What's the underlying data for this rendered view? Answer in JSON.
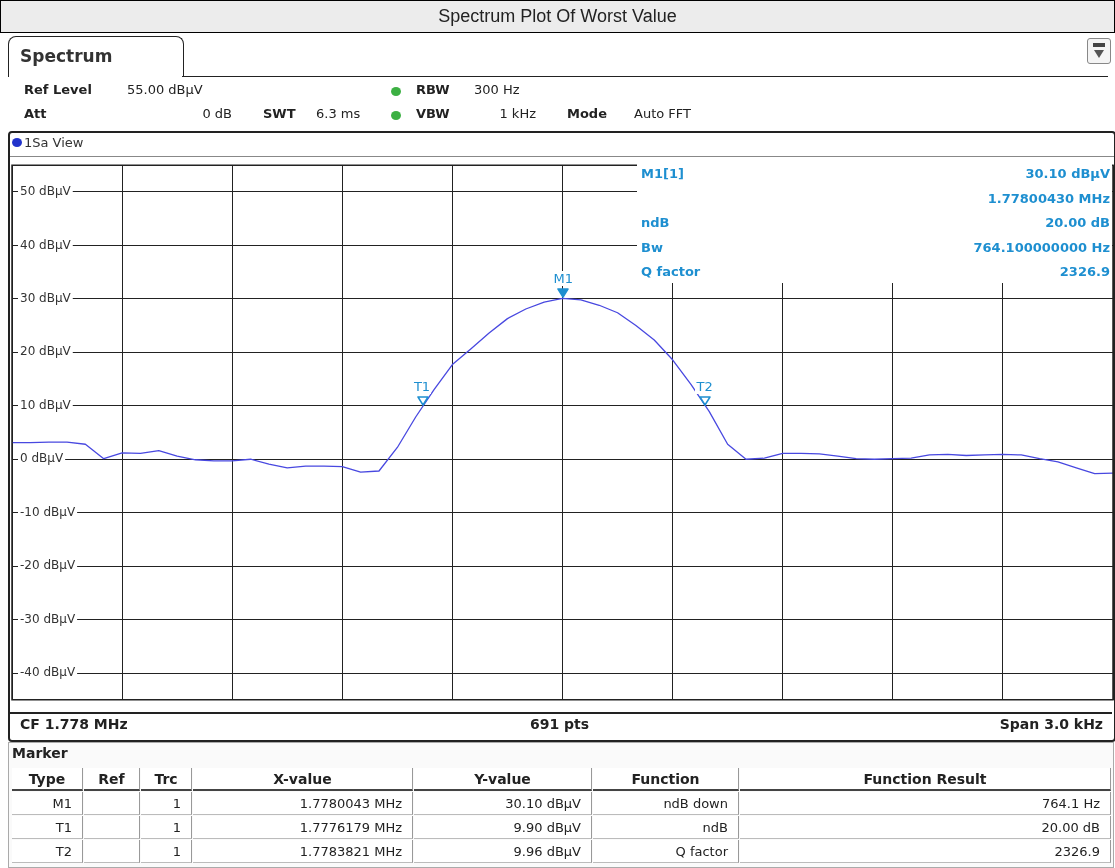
{
  "chart_data": {
    "type": "line",
    "title": "Spectrum Plot Of Worst Value",
    "subtitle": "Spectrum",
    "categories": [
      null,
      null,
      null,
      null,
      null,
      null,
      null,
      null,
      null,
      null,
      null,
      null,
      null,
      null,
      null,
      null,
      null,
      null,
      null,
      null,
      null,
      null,
      null,
      null,
      null,
      null,
      null,
      null,
      null,
      null,
      null,
      null,
      null,
      null,
      null,
      null,
      null,
      null,
      null,
      null,
      null,
      null,
      null,
      null,
      null,
      null,
      null,
      null,
      null,
      null,
      null,
      null,
      null,
      null,
      null,
      null,
      null,
      null,
      null,
      null,
      null
    ],
    "ylim": [
      -45,
      55
    ],
    "yticks": [
      {
        "value": 50,
        "label": "50 dBµV"
      },
      {
        "value": 40,
        "label": "40 dBµV"
      },
      {
        "value": 30,
        "label": "30 dBµV"
      },
      {
        "value": 20,
        "label": "20 dBµV"
      },
      {
        "value": 10,
        "label": "10 dBµV"
      },
      {
        "value": 0,
        "label": "0 dBµV"
      },
      {
        "value": -10,
        "label": "-10 dBµV"
      },
      {
        "value": -20,
        "label": "-20 dBµV"
      },
      {
        "value": -30,
        "label": "-30 dBµV"
      },
      {
        "value": -40,
        "label": "-40 dBµV"
      }
    ],
    "tick_labels": "y",
    "grid": true,
    "legend": false,
    "marker": "none",
    "line_style": "solid",
    "series": [
      {
        "color": "#4848e0",
        "values": [
          3.1,
          3.1,
          3.2,
          3.2,
          2.8,
          0.1,
          1.2,
          1.1,
          1.6,
          0.6,
          -0.1,
          -0.3,
          -0.3,
          0,
          -0.9,
          -1.6,
          -1.3,
          -1.3,
          -1.4,
          -2.4,
          -2.2,
          2.2,
          7.9,
          13,
          17.7,
          20.6,
          23.6,
          26.3,
          28.1,
          29.4,
          30.1,
          29.8,
          28.8,
          27.4,
          25,
          22.3,
          18.6,
          14,
          8.9,
          2.8,
          0,
          0.2,
          1.1,
          1.1,
          1,
          0.6,
          0.1,
          0,
          0.1,
          0.2,
          0.8,
          0.9,
          0.7,
          0.8,
          0.9,
          0.8,
          0.1,
          -0.5,
          -1.6,
          -2.7,
          -2.6
        ]
      }
    ],
    "annotations": [
      "Ref Level",
      "55.00 dBµV",
      "Att",
      "0 dB",
      "SWT",
      "6.3 ms",
      "RBW",
      "300 Hz",
      "VBW",
      "1 kHz",
      "Mode",
      "Auto FFT",
      "1Sa View",
      "M1[1]",
      "30.10 dBµV",
      "1.77800430 MHz",
      "ndB",
      "20.00 dB",
      "Bw",
      "764.100000000 Hz",
      "Q factor",
      "2326.9",
      {
        "text": "T1",
        "y": 9.9
      },
      {
        "text": "M1",
        "y": 30.1
      },
      {
        "text": "T2",
        "y": 9.96
      },
      "CF 1.778 MHz",
      "691 pts",
      "Span 3.0 kHz",
      "Marker",
      "Type",
      "Ref",
      "Trc",
      "X-value",
      "Y-value",
      "Function",
      "Function Result",
      "M1",
      null,
      "1",
      "1.7780043 MHz",
      "30.10 dBµV",
      "ndB down",
      "764.1 Hz",
      "T1",
      null,
      "1",
      "1.7776179 MHz",
      "9.90 dBµV",
      "ndB",
      "20.00 dB",
      "T2",
      null,
      "1",
      "1.7783821 MHz",
      "9.96 dBµV",
      "Q factor",
      "2326.9"
    ]
  }
}
